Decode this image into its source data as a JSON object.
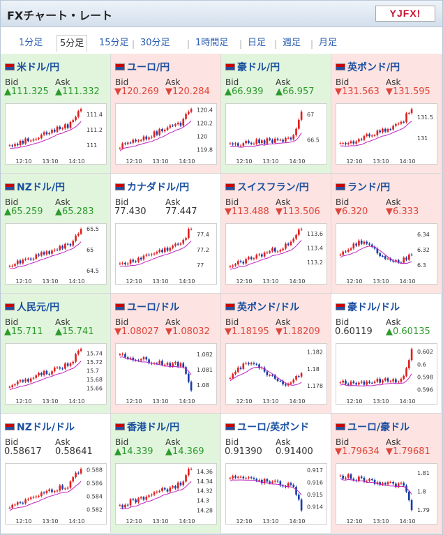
{
  "app": {
    "title": "FXチャート・レート",
    "logo_text": "YJFX!"
  },
  "tabs": [
    "1分足",
    "5分足",
    "15分足",
    "30分足",
    "1時間足",
    "日足",
    "週足",
    "月足"
  ],
  "active_tab": 1,
  "labels": {
    "bid": "Bid",
    "ask": "Ask"
  },
  "colors": {
    "up_bg": "#e1f5dd",
    "down_bg": "#fde3e1",
    "up": "#2c9a2c",
    "down": "#e0443a",
    "candle_up": "#e02020",
    "candle_down": "#1a3ea8",
    "ma": "#c020c0"
  },
  "pairs": [
    {
      "name": "米ドル/円",
      "dir": "up",
      "bid": "▲111.325",
      "ask": "▲111.332",
      "chart_data": {
        "type": "line",
        "x_ticks": [
          "12:10",
          "13:10",
          "14:10"
        ],
        "y_ticks": [
          "111.4",
          "111.2",
          "111"
        ],
        "ylim": [
          110.9,
          111.5
        ],
        "trend": "up",
        "last": 111.33
      }
    },
    {
      "name": "ユーロ/円",
      "dir": "down",
      "bid": "▼120.269",
      "ask": "▼120.284",
      "chart_data": {
        "type": "line",
        "x_ticks": [
          "12:10",
          "13:10",
          "14:10"
        ],
        "y_ticks": [
          "120.4",
          "120.2",
          "120",
          "119.8"
        ],
        "ylim": [
          119.75,
          120.45
        ],
        "trend": "up",
        "last": 120.28
      }
    },
    {
      "name": "豪ドル/円",
      "dir": "up",
      "bid": "▲66.939",
      "ask": "▲66.957",
      "chart_data": {
        "type": "line",
        "x_ticks": [
          "12:10",
          "13:10",
          "14:10"
        ],
        "y_ticks": [
          "67",
          "66.5"
        ],
        "ylim": [
          66.25,
          67.15
        ],
        "trend": "spike",
        "last": 66.95
      }
    },
    {
      "name": "英ポンド/円",
      "dir": "down",
      "bid": "▼131.563",
      "ask": "▼131.595",
      "chart_data": {
        "type": "line",
        "x_ticks": [
          "12:10",
          "13:10",
          "14:10"
        ],
        "y_ticks": [
          "131.5",
          "131"
        ],
        "ylim": [
          130.65,
          131.75
        ],
        "trend": "up",
        "last": 131.58
      }
    },
    {
      "name": "NZドル/円",
      "dir": "up",
      "bid": "▲65.259",
      "ask": "▲65.283",
      "chart_data": {
        "type": "line",
        "x_ticks": [
          "12:10",
          "13:10",
          "14:10"
        ],
        "y_ticks": [
          "65.5",
          "65",
          "64.5"
        ],
        "ylim": [
          64.45,
          65.55
        ],
        "trend": "up",
        "last": 65.27
      }
    },
    {
      "name": "カナダドル/円",
      "dir": "flat",
      "bid": "77.430",
      "ask": "77.447",
      "chart_data": {
        "type": "line",
        "x_ticks": [
          "12:10",
          "13:10",
          "14:10"
        ],
        "y_ticks": [
          "77.4",
          "77.2",
          "77"
        ],
        "ylim": [
          76.9,
          77.5
        ],
        "trend": "up",
        "last": 77.44
      }
    },
    {
      "name": "スイスフラン/円",
      "dir": "down",
      "bid": "▼113.488",
      "ask": "▼113.506",
      "chart_data": {
        "type": "line",
        "x_ticks": [
          "12:10",
          "13:10",
          "14:10"
        ],
        "y_ticks": [
          "113.6",
          "113.4",
          "113.2"
        ],
        "ylim": [
          113.05,
          113.7
        ],
        "trend": "up",
        "last": 113.5
      }
    },
    {
      "name": "ランド/円",
      "dir": "down",
      "bid": "▼6.320",
      "ask": "▼6.333",
      "chart_data": {
        "type": "line",
        "x_ticks": [
          "12:10",
          "13:10",
          "14:10"
        ],
        "y_ticks": [
          "6.34",
          "6.32",
          "6.3"
        ],
        "ylim": [
          6.29,
          6.35
        ],
        "trend": "choppy",
        "last": 6.33
      }
    },
    {
      "name": "人民元/円",
      "dir": "up",
      "bid": "▲15.711",
      "ask": "▲15.741",
      "chart_data": {
        "type": "line",
        "x_ticks": [
          "12:10",
          "13:10",
          "14:10"
        ],
        "y_ticks": [
          "15.74",
          "15.72",
          "15.7",
          "15.68",
          "15.66"
        ],
        "ylim": [
          15.65,
          15.755
        ],
        "trend": "up",
        "last": 15.73
      }
    },
    {
      "name": "ユーロ/ドル",
      "dir": "down",
      "bid": "▼1.08027",
      "ask": "▼1.08032",
      "chart_data": {
        "type": "line",
        "x_ticks": [
          "12:10",
          "13:10",
          "14:10"
        ],
        "y_ticks": [
          "1.082",
          "1.081",
          "1.08"
        ],
        "ylim": [
          1.0795,
          1.0825
        ],
        "trend": "down",
        "last": 1.0803
      }
    },
    {
      "name": "英ポンド/ドル",
      "dir": "down",
      "bid": "▼1.18195",
      "ask": "▼1.18209",
      "chart_data": {
        "type": "line",
        "x_ticks": [
          "12:10",
          "13:10",
          "14:10"
        ],
        "y_ticks": [
          "1.182",
          "1.18",
          "1.178"
        ],
        "ylim": [
          1.1772,
          1.1826
        ],
        "trend": "choppy",
        "last": 1.182
      }
    },
    {
      "name": "豪ドル/ドル",
      "dir": "flat",
      "bid": "0.60119",
      "ask": "▲0.60135",
      "chart_data": {
        "type": "line",
        "x_ticks": [
          "12:10",
          "13:10",
          "14:10"
        ],
        "y_ticks": [
          "0.602",
          "0.6",
          "0.598",
          "0.596"
        ],
        "ylim": [
          0.5955,
          0.6028
        ],
        "trend": "spike",
        "last": 0.6013
      }
    },
    {
      "name": "NZドル/ドル",
      "dir": "flat",
      "bid": "0.58617",
      "ask": "0.58641",
      "chart_data": {
        "type": "line",
        "x_ticks": [
          "12:10",
          "13:10",
          "14:10"
        ],
        "y_ticks": [
          "0.588",
          "0.586",
          "0.584",
          "0.582"
        ],
        "ylim": [
          0.5815,
          0.5885
        ],
        "trend": "up",
        "last": 0.5863
      }
    },
    {
      "name": "香港ドル/円",
      "dir": "up",
      "bid": "▲14.339",
      "ask": "▲14.369",
      "chart_data": {
        "type": "line",
        "x_ticks": [
          "12:10",
          "13:10",
          "14:10"
        ],
        "y_ticks": [
          "14.36",
          "14.34",
          "14.32",
          "14.3",
          "14.28"
        ],
        "ylim": [
          14.275,
          14.37
        ],
        "trend": "up",
        "last": 14.35
      }
    },
    {
      "name": "ユーロ/英ポンド",
      "dir": "flat",
      "bid": "0.91390",
      "ask": "0.91400",
      "chart_data": {
        "type": "line",
        "x_ticks": [
          "12:10",
          "13:10",
          "14:10"
        ],
        "y_ticks": [
          "0.917",
          "0.916",
          "0.915",
          "0.914"
        ],
        "ylim": [
          0.9135,
          0.9173
        ],
        "trend": "down",
        "last": 0.9139
      }
    },
    {
      "name": "ユーロ/豪ドル",
      "dir": "down",
      "bid": "▼1.79634",
      "ask": "▼1.79681",
      "chart_data": {
        "type": "line",
        "x_ticks": [
          "12:10",
          "13:10",
          "14:10"
        ],
        "y_ticks": [
          "1.81",
          "1.8",
          "1.79"
        ],
        "ylim": [
          1.7885,
          1.8135
        ],
        "trend": "down",
        "last": 1.7966
      }
    }
  ]
}
